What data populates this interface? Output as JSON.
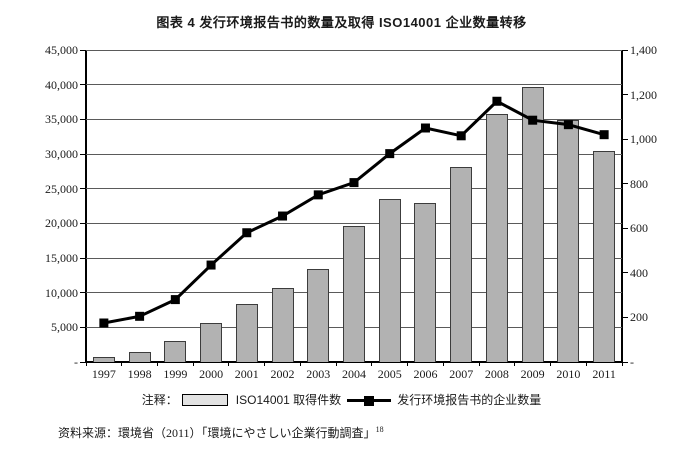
{
  "title": "图表 4  发行环境报告书的数量及取得 ISO14001 企业数量转移",
  "chart_data": {
    "type": "bar+line",
    "title": "图表 4  发行环境报告书的数量及取得 ISO14001 企业数量转移",
    "categories": [
      "1997",
      "1998",
      "1999",
      "2000",
      "2001",
      "2002",
      "2003",
      "2004",
      "2005",
      "2006",
      "2007",
      "2008",
      "2009",
      "2010",
      "2011"
    ],
    "series": [
      {
        "name": "ISO14001 取得件数",
        "type": "bar",
        "axis": "left",
        "values": [
          700,
          1500,
          3100,
          5600,
          8300,
          10700,
          13400,
          19600,
          23500,
          22900,
          28100,
          35700,
          39600,
          34900,
          30400
        ]
      },
      {
        "name": "发行环境报告书的企业数量",
        "type": "line",
        "axis": "right",
        "values": [
          175,
          205,
          280,
          435,
          580,
          655,
          750,
          805,
          935,
          1050,
          1015,
          1170,
          1085,
          1065,
          1020
        ]
      }
    ],
    "left_axis": {
      "min": 0,
      "max": 45000,
      "step": 5000,
      "tick_labels": [
        "-",
        "5,000",
        "10,000",
        "15,000",
        "20,000",
        "25,000",
        "30,000",
        "35,000",
        "40,000",
        "45,000"
      ]
    },
    "right_axis": {
      "min": 0,
      "max": 1400,
      "step": 200,
      "tick_labels": [
        "-",
        "200",
        "400",
        "600",
        "800",
        "1,000",
        "1,200",
        "1,400"
      ]
    },
    "grid": true,
    "legend_position": "bottom"
  },
  "legend": {
    "prefix": "注释：",
    "bar_label": "ISO14001 取得件数",
    "line_label": "发行环境报告书的企业数量"
  },
  "source": {
    "label": "资料来源：環境省（2011）「環境にやさしい企業行動調査」",
    "superscript": "18"
  },
  "colors": {
    "bar_fill": "#b2b2b2",
    "bar_border": "#3c3c3c",
    "line": "#000000",
    "grid": "#5a5a5a",
    "axis": "#000000",
    "legend_swatch": "#e2e2e2",
    "background": "#ffffff"
  }
}
